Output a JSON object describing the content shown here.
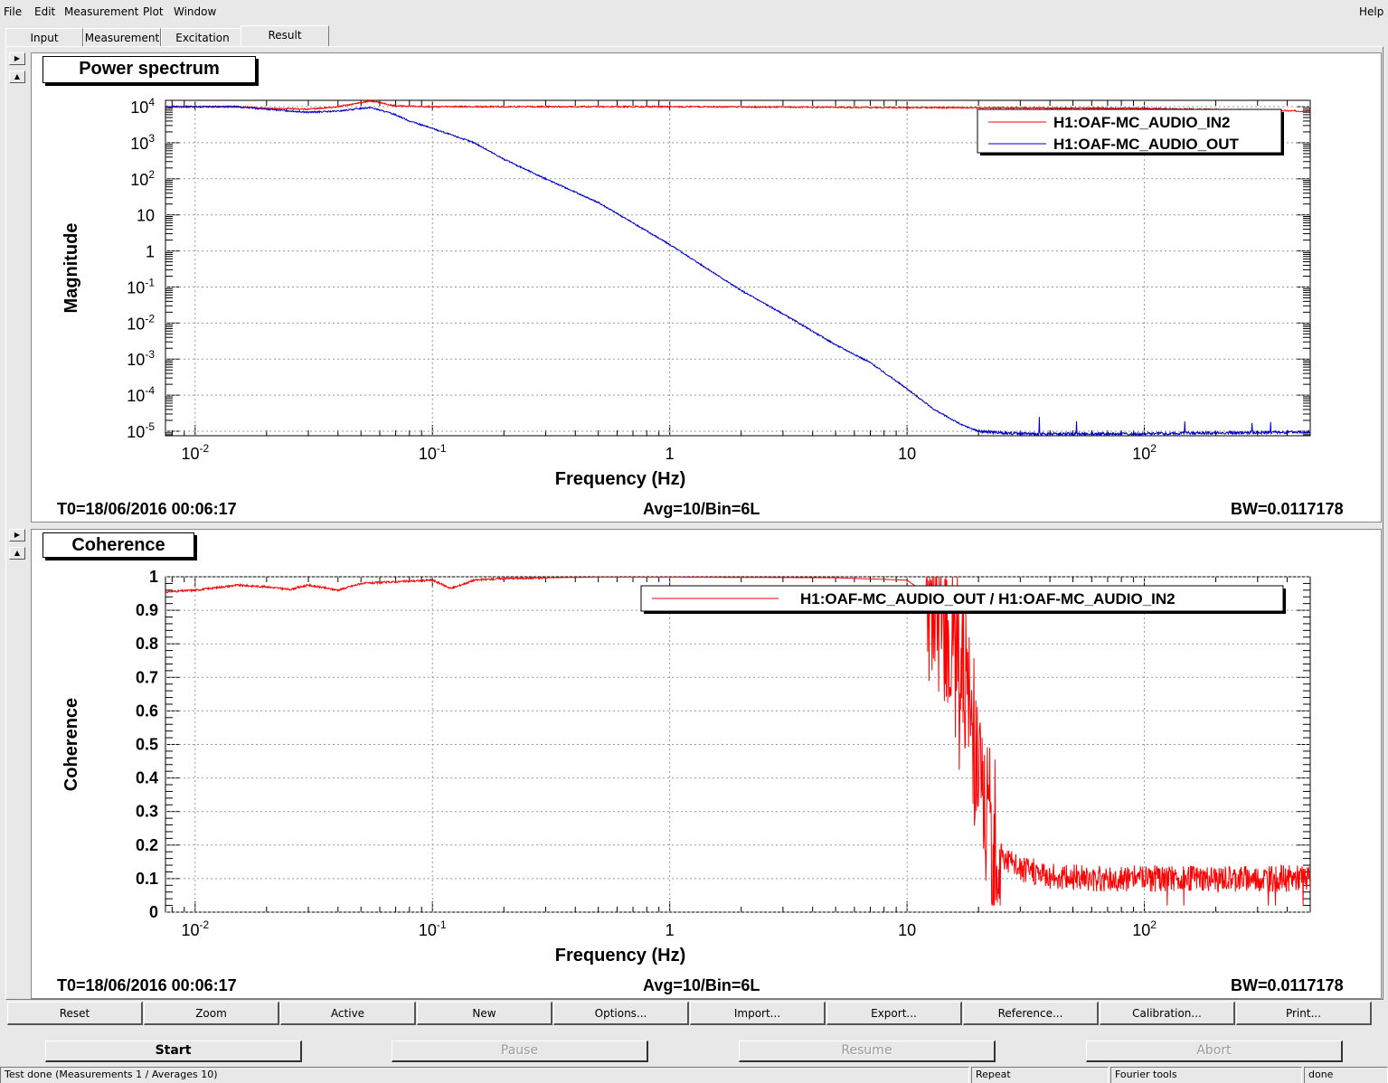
{
  "menu": {
    "file": "File",
    "edit": "Edit",
    "measurement": "Measurement",
    "plot": "Plot",
    "window": "Window",
    "help": "Help"
  },
  "tabs": [
    "Input",
    "Measurement",
    "Excitation",
    "Result"
  ],
  "colors": {
    "red": "#ff0000",
    "blue": "#0000cc"
  },
  "power_panel": {
    "title": "Power spectrum",
    "t0": "T0=18/06/2016 00:06:17",
    "avg": "Avg=10/Bin=6L",
    "bw": "BW=0.0117178"
  },
  "coh_panel": {
    "title": "Coherence",
    "t0": "T0=18/06/2016 00:06:17",
    "avg": "Avg=10/Bin=6L",
    "bw": "BW=0.0117178"
  },
  "chart_data": [
    {
      "type": "line",
      "xlabel": "Frequency (Hz)",
      "ylabel": "Magnitude",
      "xscale": "log",
      "yscale": "log",
      "xlim": [
        0.0075,
        500
      ],
      "ylim": [
        7.5e-06,
        15000
      ],
      "x_ticks": [
        {
          "v": 0.01,
          "m": "10",
          "e": "-2"
        },
        {
          "v": 0.1,
          "m": "10",
          "e": "-1"
        },
        {
          "v": 1,
          "m": "1",
          "e": ""
        },
        {
          "v": 10,
          "m": "10",
          "e": ""
        },
        {
          "v": 100,
          "m": "10",
          "e": "2"
        }
      ],
      "y_ticks": [
        {
          "v": 10000,
          "m": "10",
          "e": "4"
        },
        {
          "v": 1000,
          "m": "10",
          "e": "3"
        },
        {
          "v": 100,
          "m": "10",
          "e": "2"
        },
        {
          "v": 10,
          "m": "10",
          "e": ""
        },
        {
          "v": 1,
          "m": "1",
          "e": ""
        },
        {
          "v": 0.1,
          "m": "10",
          "e": "-1"
        },
        {
          "v": 0.01,
          "m": "10",
          "e": "-2"
        },
        {
          "v": 0.001,
          "m": "10",
          "e": "-3"
        },
        {
          "v": 0.0001,
          "m": "10",
          "e": "-4"
        },
        {
          "v": 1e-05,
          "m": "10",
          "e": "-5"
        }
      ],
      "grid": true,
      "legend": "top-right",
      "series": [
        {
          "name": "H1:OAF-MC_AUDIO_IN2",
          "color": "#ff0000",
          "x": [
            0.0075,
            0.01,
            0.015,
            0.02,
            0.03,
            0.04,
            0.05,
            0.055,
            0.07,
            0.1,
            0.2,
            0.5,
            1,
            10,
            100,
            500
          ],
          "y": [
            10000,
            10000,
            10000,
            9000,
            8500,
            10000,
            13000,
            14500,
            10500,
            10000,
            10000,
            10000,
            10000,
            9500,
            9000,
            7500
          ]
        },
        {
          "name": "H1:OAF-MC_AUDIO_OUT",
          "color": "#0000cc",
          "x": [
            0.0075,
            0.01,
            0.015,
            0.02,
            0.03,
            0.04,
            0.05,
            0.055,
            0.07,
            0.08,
            0.1,
            0.15,
            0.2,
            0.3,
            0.5,
            0.7,
            1,
            2,
            3,
            5,
            7,
            10,
            13,
            17,
            20,
            30,
            50,
            100,
            200,
            500
          ],
          "y": [
            10000,
            10000,
            10000,
            8500,
            7000,
            7500,
            9000,
            9500,
            6000,
            4000,
            2500,
            1000,
            350,
            100,
            22,
            6,
            1.5,
            0.08,
            0.018,
            0.0025,
            0.0008,
            0.00015,
            4e-05,
            1.5e-05,
            1e-05,
            8.5e-06,
            8.5e-06,
            8.5e-06,
            9e-06,
            9.5e-06
          ]
        }
      ]
    },
    {
      "type": "line",
      "xlabel": "Frequency (Hz)",
      "ylabel": "Coherence",
      "xscale": "log",
      "xlim": [
        0.0075,
        500
      ],
      "ylim": [
        0,
        1
      ],
      "x_ticks": [
        {
          "v": 0.01,
          "m": "10",
          "e": "-2"
        },
        {
          "v": 0.1,
          "m": "10",
          "e": "-1"
        },
        {
          "v": 1,
          "m": "1",
          "e": ""
        },
        {
          "v": 10,
          "m": "10",
          "e": ""
        },
        {
          "v": 100,
          "m": "10",
          "e": "2"
        }
      ],
      "y_ticks": [
        {
          "v": 1,
          "t": "1"
        },
        {
          "v": 0.9,
          "t": "0.9"
        },
        {
          "v": 0.8,
          "t": "0.8"
        },
        {
          "v": 0.7,
          "t": "0.7"
        },
        {
          "v": 0.6,
          "t": "0.6"
        },
        {
          "v": 0.5,
          "t": "0.5"
        },
        {
          "v": 0.4,
          "t": "0.4"
        },
        {
          "v": 0.3,
          "t": "0.3"
        },
        {
          "v": 0.2,
          "t": "0.2"
        },
        {
          "v": 0.1,
          "t": "0.1"
        },
        {
          "v": 0,
          "t": "0"
        }
      ],
      "grid": true,
      "legend": "top-right",
      "series": [
        {
          "name": "H1:OAF-MC_AUDIO_OUT / H1:OAF-MC_AUDIO_IN2",
          "color": "#ff0000",
          "x": [
            0.0075,
            0.01,
            0.015,
            0.02,
            0.025,
            0.03,
            0.04,
            0.05,
            0.07,
            0.1,
            0.12,
            0.15,
            0.2,
            0.5,
            1,
            2,
            5,
            10,
            12,
            14,
            16,
            18,
            20,
            22,
            25,
            30,
            40,
            60,
            100,
            200,
            500
          ],
          "y": [
            0.955,
            0.96,
            0.975,
            0.97,
            0.962,
            0.975,
            0.96,
            0.98,
            0.985,
            0.99,
            0.965,
            0.99,
            0.995,
            0.999,
            0.999,
            0.998,
            0.997,
            0.99,
            0.95,
            0.88,
            0.82,
            0.65,
            0.42,
            0.25,
            0.17,
            0.13,
            0.11,
            0.1,
            0.1,
            0.1,
            0.1
          ]
        }
      ]
    }
  ],
  "toolbar": [
    "Reset",
    "Zoom",
    "Active",
    "New",
    "Options...",
    "Import...",
    "Export...",
    "Reference...",
    "Calibration...",
    "Print..."
  ],
  "controls": {
    "start": "Start",
    "pause": "Pause",
    "resume": "Resume",
    "abort": "Abort"
  },
  "status": {
    "main": "Test done (Measurements 1 / Averages 10)",
    "repeat": "Repeat",
    "fourier": "Fourier tools",
    "done": "done"
  }
}
